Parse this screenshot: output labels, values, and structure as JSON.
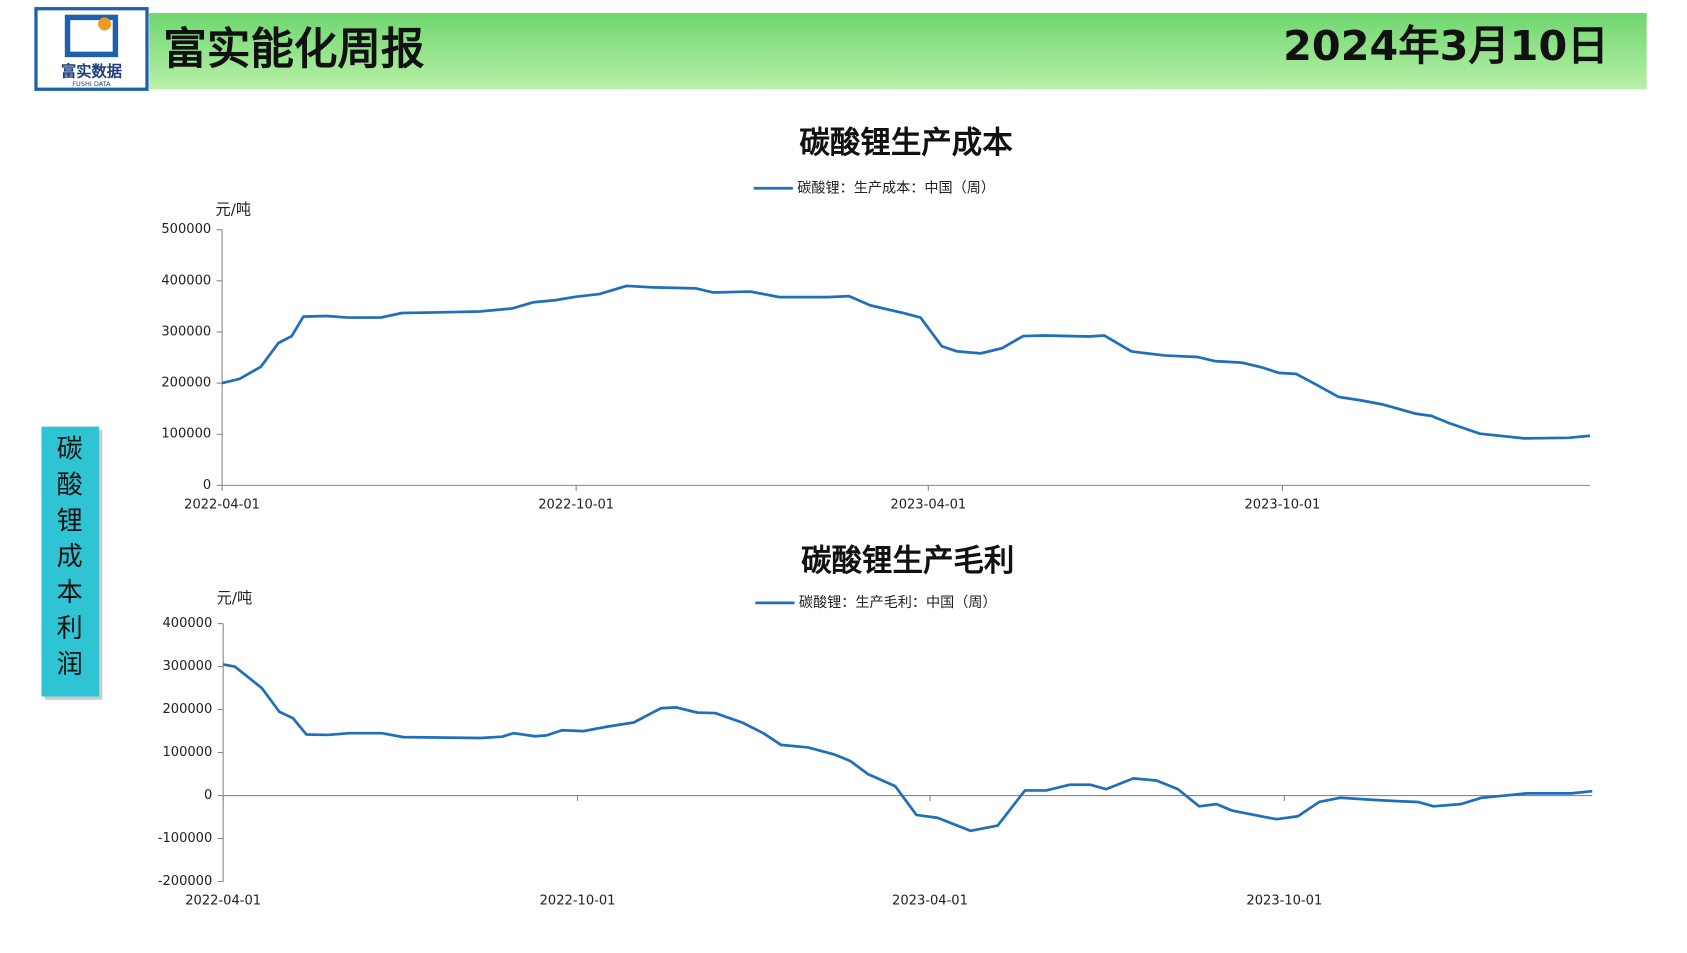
{
  "header": {
    "title": "富实能化周报",
    "date": "2024年3月10日",
    "logo_text": "富实数据",
    "logo_subtext": "FUSHI DATA"
  },
  "sidebar": {
    "label": "碳酸锂成本利润"
  },
  "chart_data": [
    {
      "type": "line",
      "title": "碳酸锂生产成本",
      "y_unit": "元/吨",
      "xlim": [
        "2022-04-01",
        "2024-03-08"
      ],
      "xticks": [
        "2022-04-01",
        "2022-10-01",
        "2023-04-01",
        "2023-10-01"
      ],
      "ylim": [
        0,
        500000
      ],
      "yticks": [
        0,
        100000,
        200000,
        300000,
        400000,
        500000
      ],
      "x": [
        "2022-04-01",
        "2022-04-10",
        "2022-04-21",
        "2022-04-30",
        "2022-05-07",
        "2022-05-13",
        "2022-05-25",
        "2022-06-05",
        "2022-06-22",
        "2022-07-03",
        "2022-07-20",
        "2022-08-12",
        "2022-08-29",
        "2022-09-09",
        "2022-09-20",
        "2022-10-01",
        "2022-10-13",
        "2022-10-27",
        "2022-11-10",
        "2022-12-02",
        "2022-12-11",
        "2022-12-30",
        "2023-01-14",
        "2023-02-08",
        "2023-02-19",
        "2023-03-02",
        "2023-03-19",
        "2023-03-28",
        "2023-04-08",
        "2023-04-16",
        "2023-04-28",
        "2023-05-09",
        "2023-05-20",
        "2023-05-31",
        "2023-06-23",
        "2023-07-01",
        "2023-07-15",
        "2023-08-01",
        "2023-08-18",
        "2023-08-27",
        "2023-09-10",
        "2023-09-21",
        "2023-09-29",
        "2023-10-08",
        "2023-10-19",
        "2023-10-30",
        "2023-11-11",
        "2023-11-22",
        "2023-12-09",
        "2023-12-17",
        "2023-12-26",
        "2024-01-11",
        "2024-02-03",
        "2024-02-26",
        "2024-03-08"
      ],
      "series": [
        {
          "name": "碳酸锂：生产成本：中国（周）",
          "color": "#1f6fba",
          "values": [
            200000,
            208000,
            232000,
            278000,
            292000,
            330000,
            331000,
            328000,
            328000,
            337000,
            338000,
            340000,
            346000,
            358000,
            362000,
            369000,
            374000,
            390000,
            387000,
            385000,
            377000,
            379000,
            368000,
            368000,
            370000,
            352000,
            337000,
            328000,
            272000,
            262000,
            258000,
            268000,
            292000,
            293000,
            291000,
            293000,
            262000,
            254000,
            251000,
            243000,
            240000,
            230000,
            220000,
            218000,
            196000,
            173000,
            166000,
            158000,
            140000,
            136000,
            122000,
            101000,
            92000,
            93000,
            97000
          ]
        }
      ]
    },
    {
      "type": "line",
      "title": "碳酸锂生产毛利",
      "y_unit": "元/吨",
      "xlim": [
        "2022-04-01",
        "2024-03-08"
      ],
      "xticks": [
        "2022-04-01",
        "2022-10-01",
        "2023-04-01",
        "2023-10-01"
      ],
      "ylim": [
        -200000,
        400000
      ],
      "yticks": [
        -200000,
        -100000,
        0,
        100000,
        200000,
        300000,
        400000
      ],
      "x": [
        "2022-04-01",
        "2022-04-07",
        "2022-04-21",
        "2022-04-30",
        "2022-05-07",
        "2022-05-14",
        "2022-05-25",
        "2022-06-05",
        "2022-06-22",
        "2022-07-03",
        "2022-08-12",
        "2022-08-23",
        "2022-08-29",
        "2022-09-09",
        "2022-09-15",
        "2022-09-23",
        "2022-10-04",
        "2022-10-16",
        "2022-10-30",
        "2022-11-13",
        "2022-11-21",
        "2022-12-02",
        "2022-12-11",
        "2022-12-25",
        "2023-01-05",
        "2023-01-14",
        "2023-01-28",
        "2023-02-11",
        "2023-02-19",
        "2023-02-28",
        "2023-03-14",
        "2023-03-25",
        "2023-04-05",
        "2023-04-22",
        "2023-05-06",
        "2023-05-20",
        "2023-05-31",
        "2023-06-12",
        "2023-06-23",
        "2023-07-01",
        "2023-07-15",
        "2023-07-27",
        "2023-08-07",
        "2023-08-18",
        "2023-08-27",
        "2023-09-04",
        "2023-09-21",
        "2023-09-27",
        "2023-10-08",
        "2023-10-19",
        "2023-10-30",
        "2023-11-16",
        "2023-11-28",
        "2023-12-09",
        "2023-12-17",
        "2023-12-31",
        "2024-01-11",
        "2024-01-23",
        "2024-02-03",
        "2024-02-26",
        "2024-03-08"
      ],
      "series": [
        {
          "name": "碳酸锂：生产毛利：中国（周）",
          "color": "#1f6fba",
          "values": [
            305000,
            300000,
            250000,
            195000,
            180000,
            142000,
            141000,
            145000,
            145000,
            136000,
            134000,
            137000,
            145000,
            138000,
            140000,
            152000,
            150000,
            160000,
            170000,
            203000,
            205000,
            193000,
            192000,
            170000,
            145000,
            118000,
            112000,
            95000,
            80000,
            50000,
            22000,
            -45000,
            -52000,
            -82000,
            -70000,
            12000,
            12000,
            25000,
            25000,
            15000,
            40000,
            35000,
            15000,
            -25000,
            -20000,
            -35000,
            -50000,
            -55000,
            -48000,
            -15000,
            -5000,
            -10000,
            -13000,
            -15000,
            -25000,
            -20000,
            -5000,
            0,
            5000,
            5000,
            10000
          ]
        }
      ]
    }
  ]
}
